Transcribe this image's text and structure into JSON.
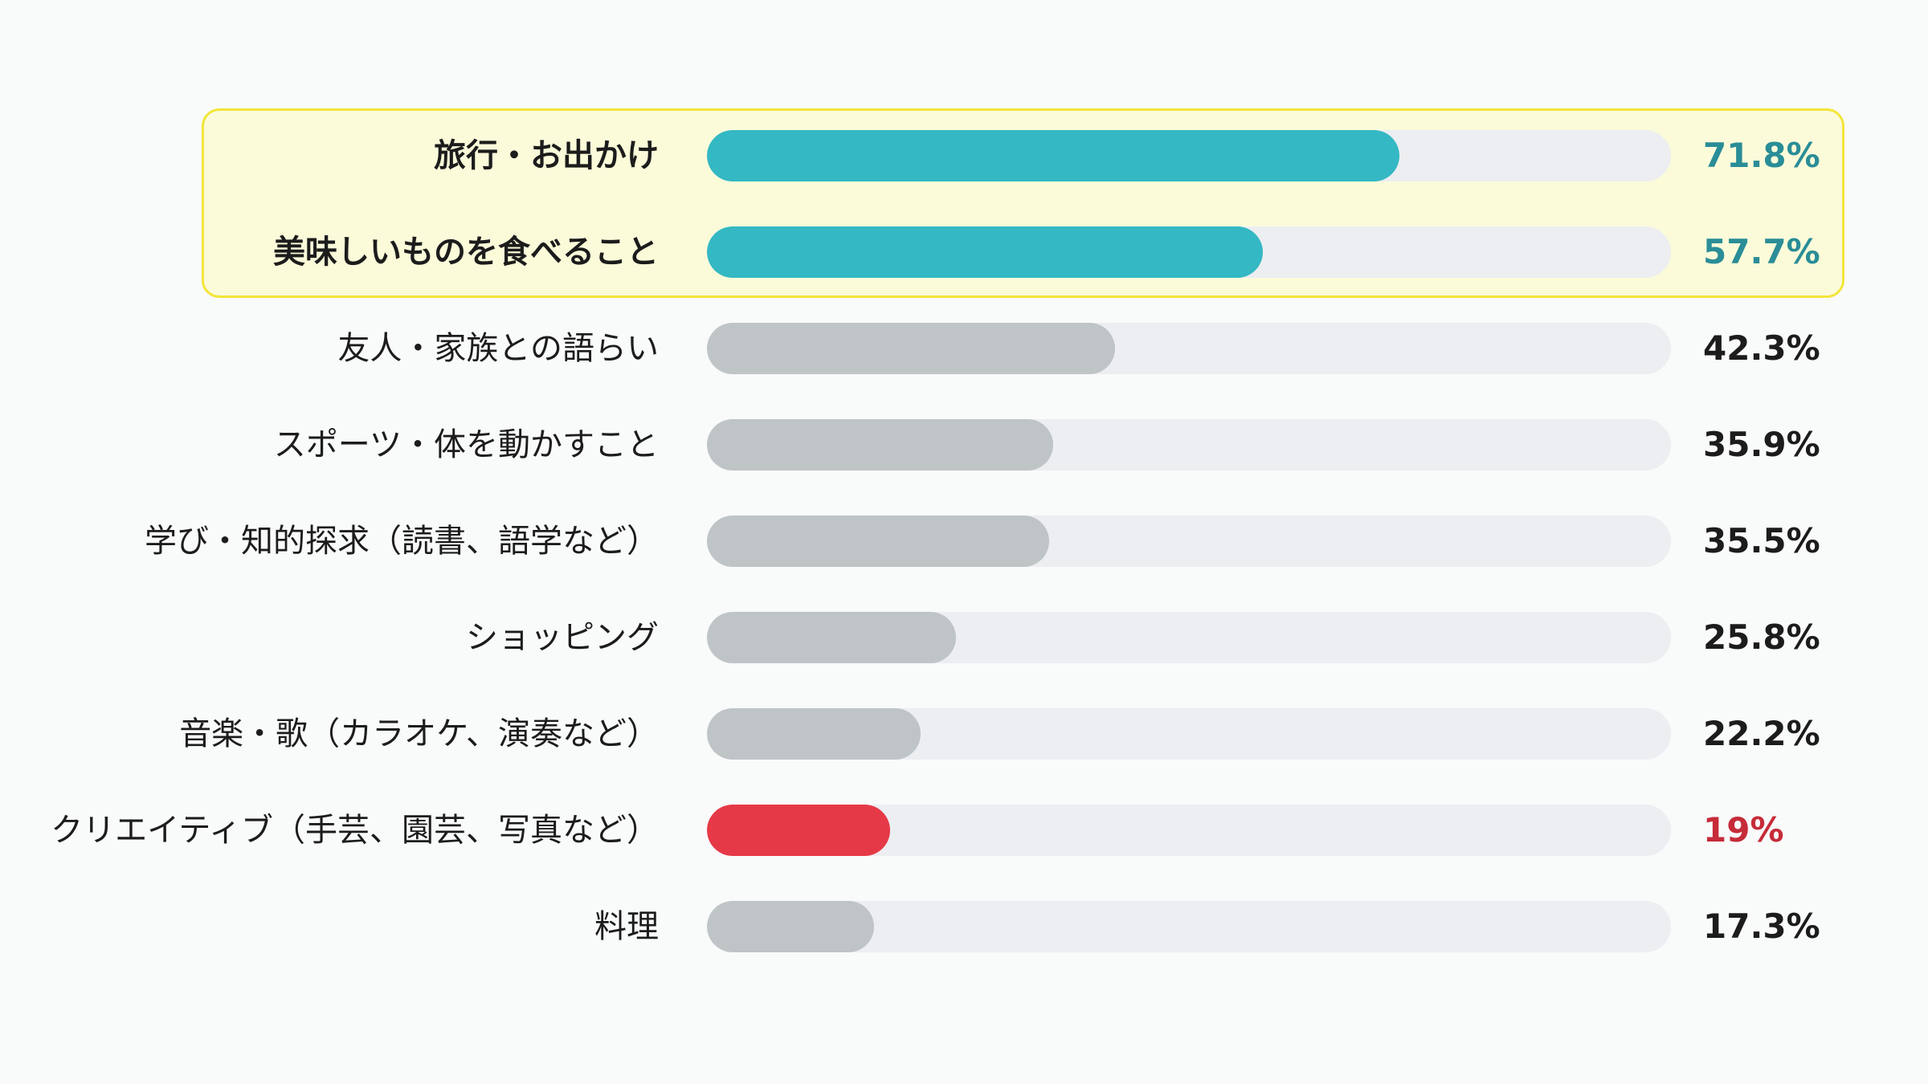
{
  "chart_data": {
    "type": "bar",
    "orientation": "horizontal",
    "categories": [
      "旅行・お出かけ",
      "美味しいものを食べること",
      "友人・家族との語らい",
      "スポーツ・体を動かすこと",
      "学び・知的探求（読書、語学など）",
      "ショッピング",
      "音楽・歌（カラオケ、演奏など）",
      "クリエイティブ（手芸、園芸、写真など）",
      "料理"
    ],
    "values": [
      71.8,
      57.7,
      42.3,
      35.9,
      35.5,
      25.8,
      22.2,
      19,
      17.3
    ],
    "value_labels": [
      "71.8%",
      "57.7%",
      "42.3%",
      "35.9%",
      "35.5%",
      "25.8%",
      "22.2%",
      "19%",
      "17.3%"
    ],
    "xlim": [
      0,
      100
    ],
    "unit": "%",
    "highlighted": [
      0,
      1
    ],
    "accent": [
      7
    ],
    "grid": false,
    "legend": "none"
  },
  "colors": {
    "highlight_bar": "#34b8c3",
    "highlight_value": "#2a8d97",
    "default_bar": "#bfc4c7",
    "default_value": "#1c1c1c",
    "accent_bar": "#e63947",
    "accent_value": "#c62b39",
    "track": "#eceef1",
    "highlight_background": "#fbfbda",
    "highlight_border": "#f3e53a"
  }
}
